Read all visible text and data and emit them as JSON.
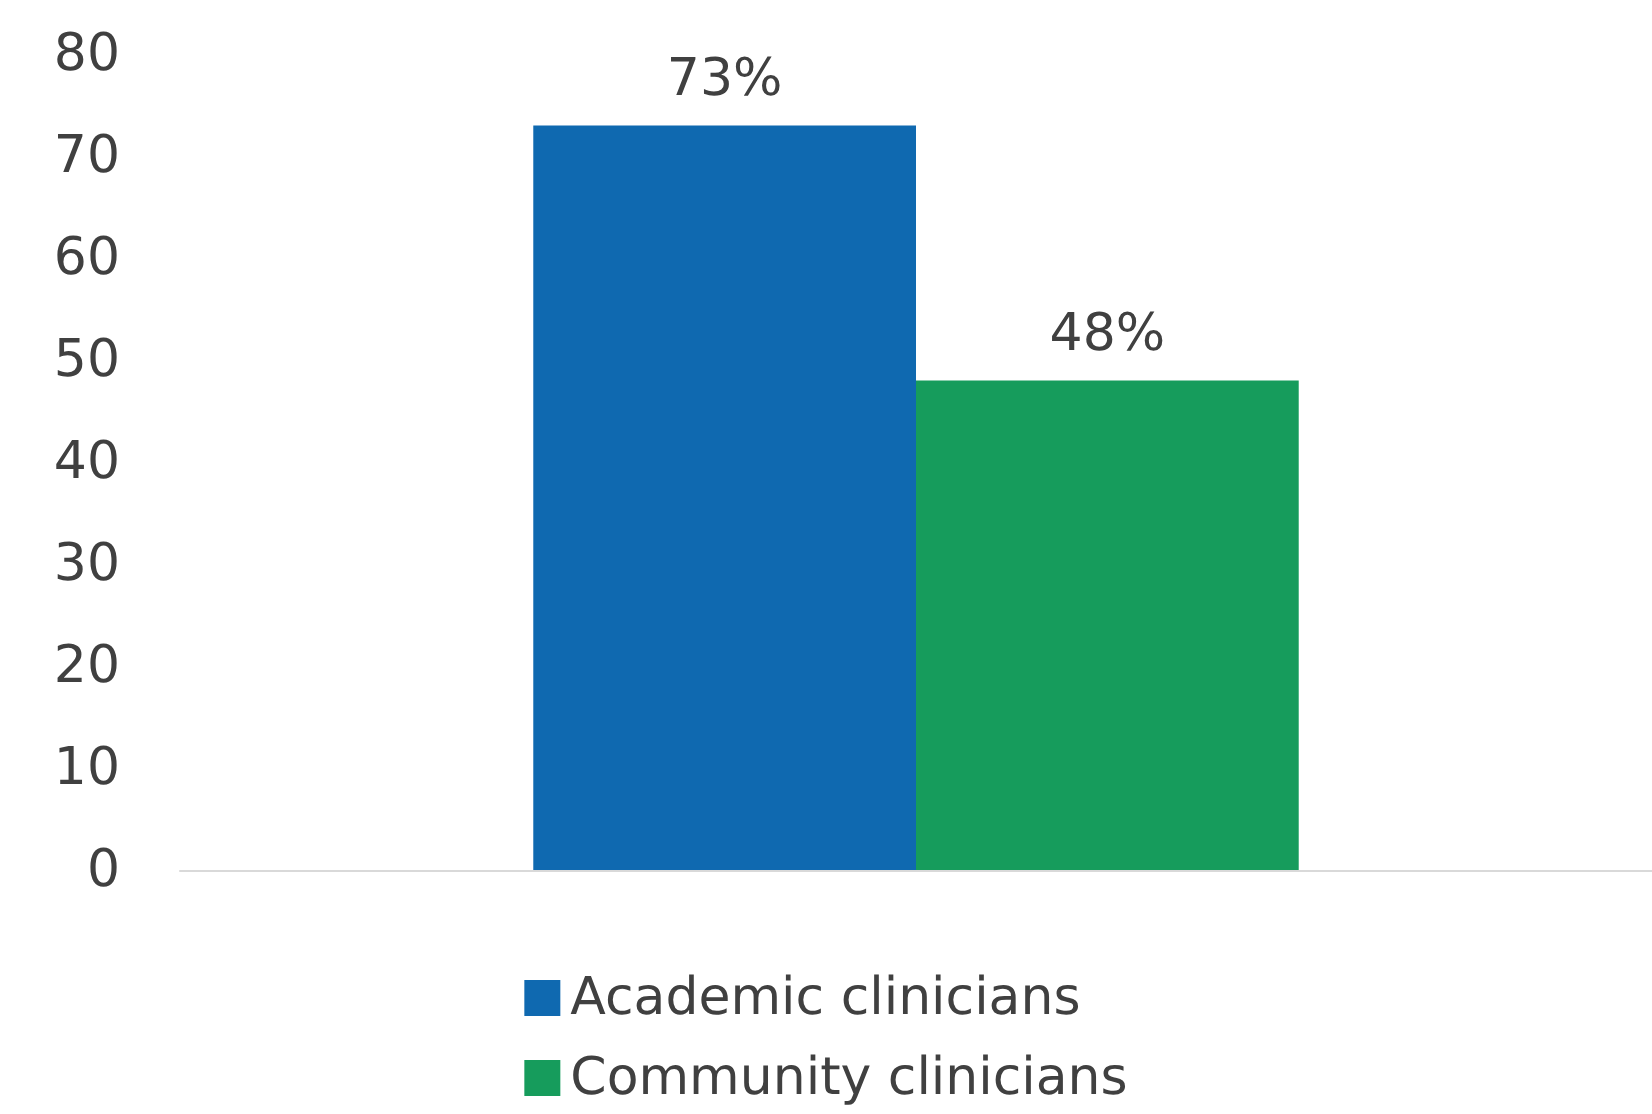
{
  "chart_data": {
    "type": "bar",
    "categories": [
      null
    ],
    "series": [
      {
        "name": "Academic clinicians",
        "color": "#0f69b0",
        "values": [
          73
        ],
        "value_labels": [
          "73%"
        ]
      },
      {
        "name": "Community clinicians",
        "color": "#169c5c",
        "values": [
          48
        ],
        "value_labels": [
          "48%"
        ]
      }
    ],
    "ylim": [
      0,
      80
    ],
    "yticks": [
      0,
      10,
      20,
      30,
      40,
      50,
      60,
      70,
      80
    ],
    "grid": false,
    "legend": "bottom"
  }
}
